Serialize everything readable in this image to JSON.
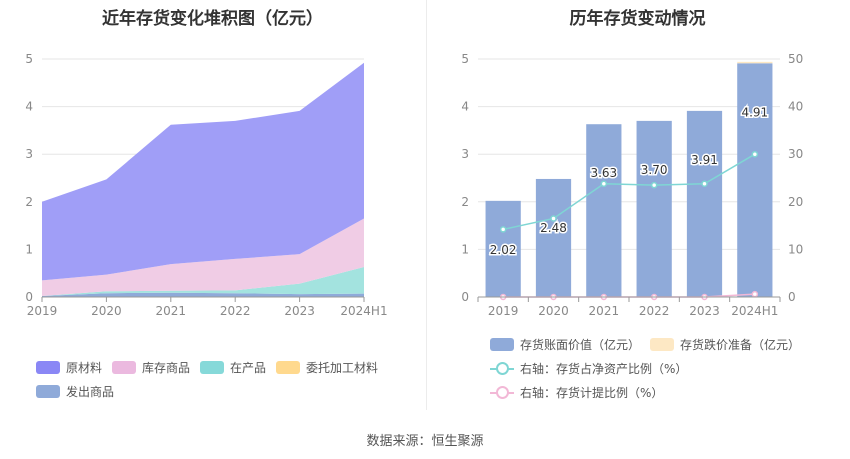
{
  "left_title": "近年存货变化堆积图（亿元）",
  "right_title": "历年存货变动情况",
  "source": "数据来源：恒生聚源",
  "chart_data": [
    {
      "type": "area",
      "stacked": true,
      "title": "近年存货变化堆积图（亿元）",
      "x": [
        "2019",
        "2020",
        "2021",
        "2022",
        "2023",
        "2024H1"
      ],
      "ylim": [
        0,
        5
      ],
      "yticks": [
        0,
        1,
        2,
        3,
        4,
        5
      ],
      "grid": true,
      "legend_position": "bottom",
      "series": [
        {
          "name": "发出商品",
          "color": "#8faad9",
          "values": [
            0.02,
            0.08,
            0.09,
            0.08,
            0.06,
            0.07
          ]
        },
        {
          "name": "在产品",
          "color": "#a3e3df",
          "values": [
            0.0,
            0.04,
            0.04,
            0.06,
            0.22,
            0.56
          ]
        },
        {
          "name": "委托加工材料",
          "color": "#ffd98e",
          "values": [
            0.0,
            0.0,
            0.0,
            0.0,
            0.0,
            0.0
          ]
        },
        {
          "name": "库存商品",
          "color": "#f0cce5",
          "values": [
            0.33,
            0.35,
            0.56,
            0.66,
            0.62,
            1.02
          ]
        },
        {
          "name": "原材料",
          "color": "#a09ef7",
          "values": [
            1.65,
            2.0,
            2.93,
            2.9,
            3.01,
            3.27
          ]
        }
      ],
      "legend_order": [
        "原材料",
        "库存商品",
        "在产品",
        "委托加工材料",
        "发出商品"
      ]
    },
    {
      "type": "bar",
      "title": "历年存货变动情况",
      "categories": [
        "2019",
        "2020",
        "2021",
        "2022",
        "2023",
        "2024H1"
      ],
      "ylim": [
        0,
        5
      ],
      "yticks": [
        0,
        1,
        2,
        3,
        4,
        5
      ],
      "y2lim": [
        0,
        50
      ],
      "y2ticks": [
        0,
        10,
        20,
        30,
        40,
        50
      ],
      "grid": true,
      "legend_position": "bottom",
      "series": [
        {
          "name": "存货账面价值（亿元）",
          "kind": "bar",
          "color": "#8faad9",
          "values": [
            2.02,
            2.48,
            3.63,
            3.7,
            3.91,
            4.91
          ],
          "labels": [
            "2.02",
            "2.48",
            "3.63",
            "3.70",
            "3.91",
            "4.91"
          ]
        },
        {
          "name": "存货跌价准备（亿元）",
          "kind": "bar",
          "color": "#fde8c4",
          "values": [
            0,
            0,
            0,
            0,
            0,
            0.03
          ]
        },
        {
          "name": "右轴：存货占净资产比例（%）",
          "kind": "line",
          "axis": "right",
          "color": "#7fd6d4",
          "values": [
            14.2,
            16.5,
            23.8,
            23.5,
            23.8,
            30.0
          ]
        },
        {
          "name": "右轴：存货计提比例（%）",
          "kind": "line",
          "axis": "right",
          "color": "#f2b8d6",
          "values": [
            0.0,
            0.0,
            0.0,
            0.0,
            0.0,
            0.6
          ]
        }
      ]
    }
  ]
}
